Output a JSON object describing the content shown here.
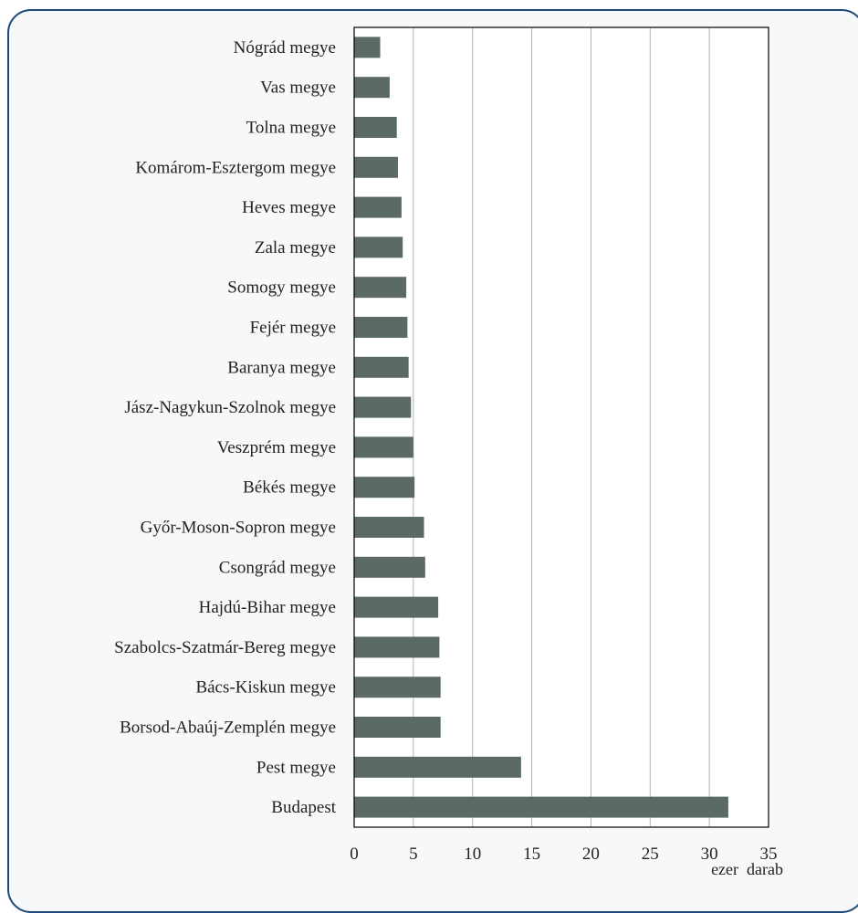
{
  "chart_data": {
    "type": "bar",
    "orientation": "horizontal",
    "categories": [
      "Nógrád megye",
      "Vas megye",
      "Tolna megye",
      "Komárom-Esztergom megye",
      "Heves megye",
      "Zala megye",
      "Somogy megye",
      "Fejér megye",
      "Baranya megye",
      "Jász-Nagykun-Szolnok megye",
      "Veszprém megye",
      "Békés megye",
      "Győr-Moson-Sopron megye",
      "Csongrád megye",
      "Hajdú-Bihar megye",
      "Szabolcs-Szatmár-Bereg megye",
      "Bács-Kiskun megye",
      "Borsod-Abaúj-Zemplén megye",
      "Pest megye",
      "Budapest"
    ],
    "values": [
      2.2,
      3.0,
      3.6,
      3.7,
      4.0,
      4.1,
      4.4,
      4.5,
      4.6,
      4.8,
      5.0,
      5.1,
      5.9,
      6.0,
      7.1,
      7.2,
      7.3,
      7.3,
      14.1,
      31.6
    ],
    "xlim": [
      0,
      35
    ],
    "xticks": [
      "0",
      "5",
      "10",
      "15",
      "20",
      "25",
      "30",
      "35"
    ],
    "xlabel": "ezer  darab",
    "grid": true,
    "bar_color": "#5b6b64",
    "grid_color": "#b3b3b3",
    "frame_color": "#1f4a7a"
  }
}
